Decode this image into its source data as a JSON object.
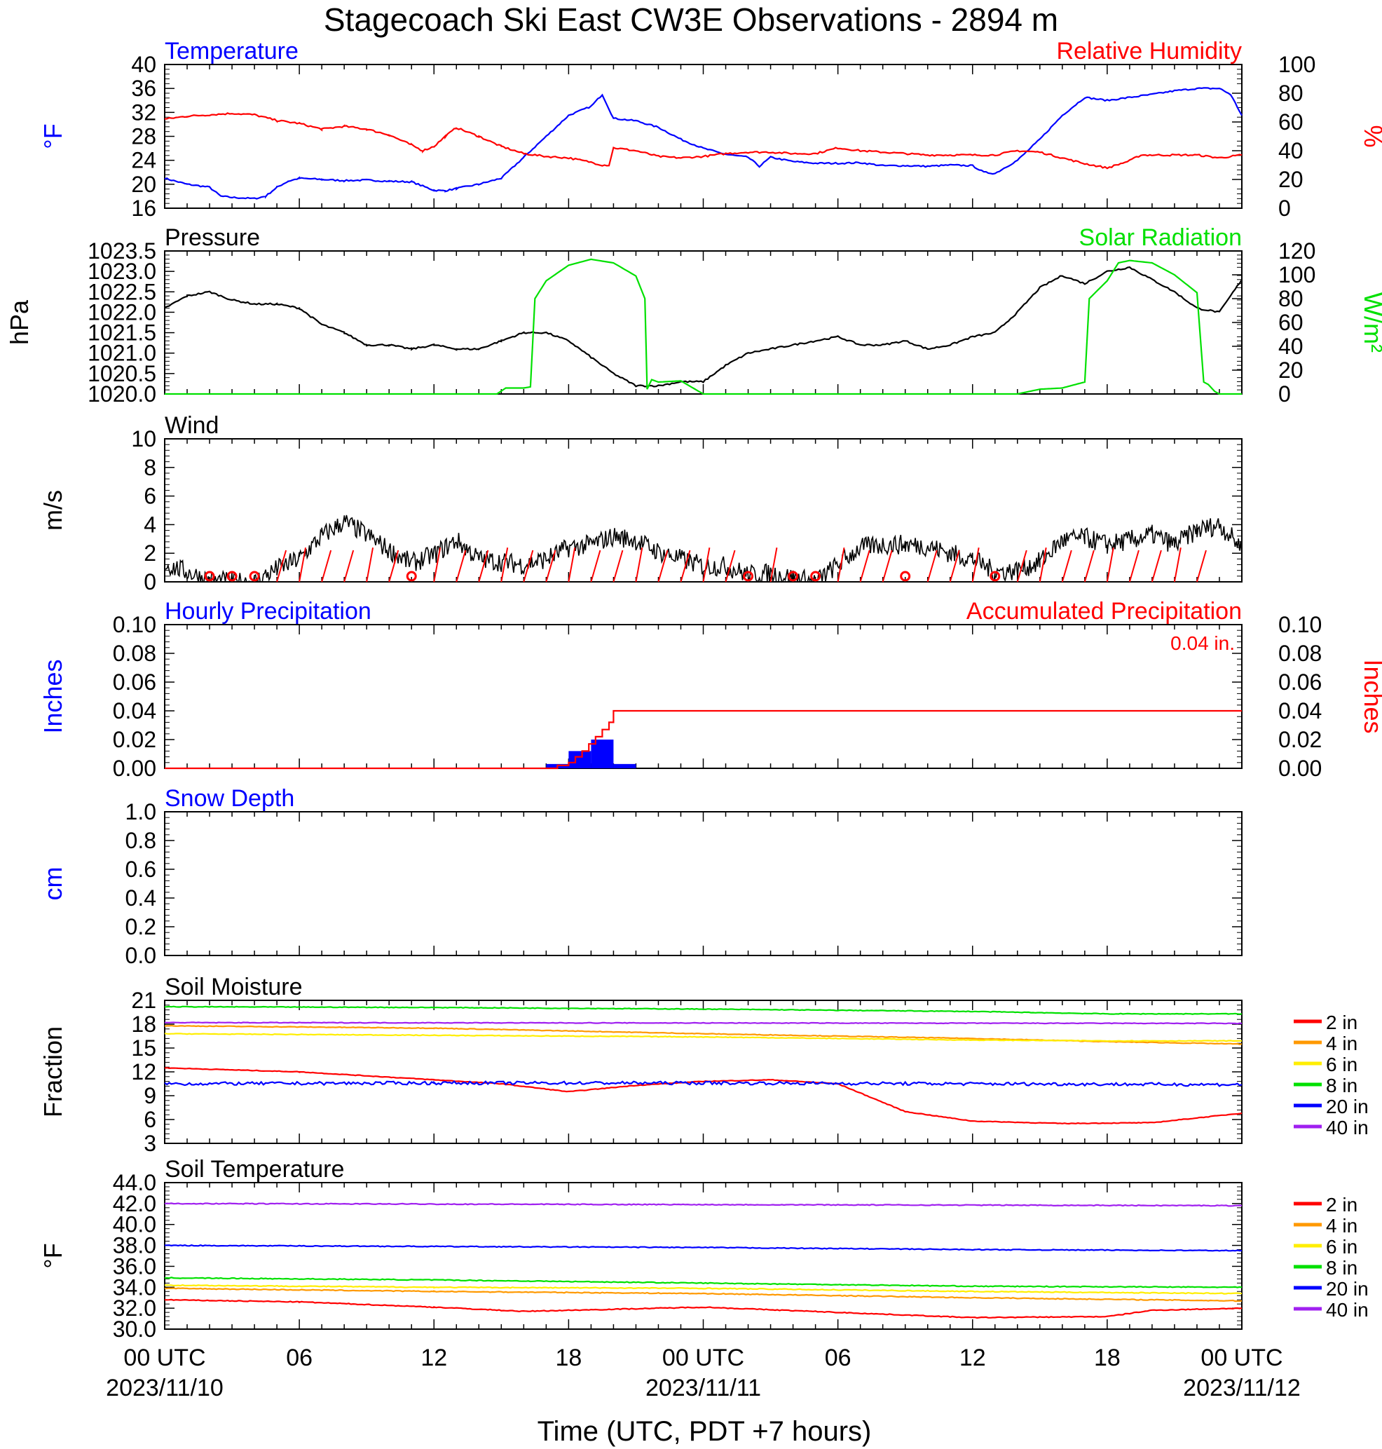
{
  "title": "Stagecoach Ski East CW3E Observations - 2894 m",
  "xaxis": {
    "title": "Time (UTC, PDT +7 hours)",
    "range_hours": [
      0,
      48
    ],
    "ticks": [
      {
        "h": 0,
        "label": "00 UTC",
        "date": "2023/11/10"
      },
      {
        "h": 6,
        "label": "06",
        "date": ""
      },
      {
        "h": 12,
        "label": "12",
        "date": ""
      },
      {
        "h": 18,
        "label": "18",
        "date": ""
      },
      {
        "h": 24,
        "label": "00 UTC",
        "date": "2023/11/11"
      },
      {
        "h": 30,
        "label": "06",
        "date": ""
      },
      {
        "h": 36,
        "label": "12",
        "date": ""
      },
      {
        "h": 42,
        "label": "18",
        "date": ""
      },
      {
        "h": 48,
        "label": "00 UTC",
        "date": "2023/11/12"
      }
    ]
  },
  "colors": {
    "blue": "#0000ff",
    "red": "#ff0000",
    "green": "#00e000",
    "black": "#000000",
    "orange": "#ff9900",
    "yellow": "#ffee00",
    "purple": "#a020f0"
  },
  "chart_data": [
    {
      "type": "line",
      "id": "temp",
      "title_left": "Temperature",
      "title_right": "Relative Humidity",
      "ylabel_left": "°F",
      "ylabel_right": "%",
      "ylim_left": [
        16,
        40
      ],
      "yticks_left": [
        "16",
        "20",
        "24",
        "28",
        "32",
        "36",
        "40"
      ],
      "ylim_right": [
        0,
        100
      ],
      "yticks_right": [
        "0",
        "20",
        "40",
        "60",
        "80",
        "100"
      ],
      "series": [
        {
          "name": "Temperature",
          "axis": "left",
          "color": "#0000ff",
          "x": [
            0,
            1,
            2,
            2.5,
            3,
            4,
            4.5,
            5,
            5.5,
            6,
            7,
            8,
            9,
            10,
            11,
            12,
            12.5,
            13,
            14,
            15,
            16,
            17,
            18,
            19,
            19.5,
            20,
            21,
            22,
            23,
            24,
            25,
            26,
            26.5,
            27,
            28,
            29,
            30,
            31,
            32,
            33,
            34,
            35,
            36,
            36.5,
            37,
            38,
            39,
            40,
            41,
            42,
            43,
            44,
            45,
            46,
            47,
            47.5,
            48
          ],
          "y": [
            21,
            20,
            19.5,
            18,
            17.8,
            17.6,
            18,
            19.5,
            20.5,
            21,
            20.8,
            20.6,
            20.7,
            20.5,
            20.4,
            19,
            18.9,
            19.3,
            20,
            21,
            24.5,
            28,
            31.5,
            33,
            35,
            31,
            30.6,
            29.5,
            27.5,
            26,
            25,
            24.5,
            23,
            24.5,
            23.8,
            23.5,
            23.5,
            23.6,
            23.1,
            23.1,
            23,
            23.2,
            23.1,
            22,
            21.8,
            24,
            27.5,
            31.5,
            34.5,
            34,
            34.5,
            35,
            35.6,
            36,
            36,
            35,
            31.5
          ]
        },
        {
          "name": "Relative Humidity",
          "axis": "right",
          "color": "#ff0000",
          "x": [
            0,
            1,
            2,
            3,
            4,
            5,
            6,
            7,
            8,
            9,
            10,
            11,
            11.5,
            12,
            12.5,
            13,
            14,
            15,
            16,
            17,
            18,
            19,
            19.5,
            19.8,
            20,
            21,
            22,
            23,
            24,
            25,
            26,
            27,
            28,
            29,
            30,
            31,
            32,
            33,
            34,
            35,
            36,
            37,
            38,
            39,
            40,
            41,
            42,
            43,
            43.5,
            44,
            45,
            46,
            47,
            47.5,
            48
          ],
          "y": [
            62,
            64,
            65,
            66,
            65,
            61,
            59,
            55,
            57,
            55,
            51,
            44,
            40,
            43,
            50,
            56,
            50,
            43,
            38,
            36,
            35,
            32,
            30,
            30,
            42,
            40,
            36,
            35,
            36,
            38,
            39,
            39,
            38,
            38,
            42,
            40,
            39,
            38,
            37,
            37,
            37,
            37,
            40,
            39,
            35,
            31,
            28,
            33,
            37,
            37,
            37,
            37,
            35,
            36,
            37
          ]
        }
      ]
    },
    {
      "type": "line",
      "id": "pressure",
      "title_left": "Pressure",
      "title_right": "Solar Radiation",
      "ylabel_left": "hPa",
      "ylabel_right": "W/m²",
      "ylim_left": [
        1020.0,
        1023.5
      ],
      "yticks_left": [
        "1020.0",
        "1020.5",
        "1021.0",
        "1021.5",
        "1022.0",
        "1022.5",
        "1023.0",
        "1023.5"
      ],
      "ylim_right": [
        0,
        120
      ],
      "yticks_right": [
        "0",
        "20",
        "40",
        "60",
        "80",
        "100",
        "120"
      ],
      "series": [
        {
          "name": "Pressure",
          "axis": "left",
          "color": "#000000",
          "x": [
            0,
            1,
            2,
            3,
            4,
            5,
            6,
            7,
            8,
            9,
            10,
            11,
            12,
            13,
            14,
            15,
            16,
            17,
            18,
            19,
            20,
            21,
            22,
            23,
            24,
            25,
            26,
            27,
            28,
            29,
            30,
            31,
            32,
            33,
            34,
            35,
            36,
            37,
            38,
            39,
            40,
            41,
            42,
            43,
            44,
            45,
            46,
            47,
            48
          ],
          "y": [
            1022.1,
            1022.4,
            1022.5,
            1022.3,
            1022.2,
            1022.2,
            1022.1,
            1021.7,
            1021.5,
            1021.2,
            1021.2,
            1021.1,
            1021.2,
            1021.1,
            1021.1,
            1021.3,
            1021.5,
            1021.5,
            1021.3,
            1020.9,
            1020.5,
            1020.2,
            1020.2,
            1020.3,
            1020.3,
            1020.7,
            1021.0,
            1021.1,
            1021.2,
            1021.3,
            1021.4,
            1021.2,
            1021.2,
            1021.3,
            1021.1,
            1021.2,
            1021.4,
            1021.5,
            1022.0,
            1022.6,
            1022.9,
            1022.7,
            1023.0,
            1023.1,
            1022.8,
            1022.5,
            1022.1,
            1022.0,
            1022.8
          ]
        },
        {
          "name": "Solar Radiation",
          "axis": "right",
          "color": "#00e000",
          "x": [
            0,
            14,
            14.8,
            15.2,
            16,
            16.3,
            16.5,
            17,
            18,
            19,
            20,
            21,
            21.4,
            21.5,
            21.7,
            22,
            23,
            24,
            36,
            38,
            39,
            40,
            41,
            41.2,
            42,
            42.5,
            43,
            44,
            45,
            46,
            46.3,
            46.5,
            46.8,
            47,
            48
          ],
          "y": [
            0,
            0,
            0,
            5,
            5,
            6,
            80,
            95,
            108,
            113,
            110,
            99,
            80,
            4,
            12,
            10,
            11,
            0,
            0,
            0,
            4,
            5,
            10,
            80,
            95,
            110,
            112,
            110,
            100,
            85,
            10,
            8,
            2,
            0,
            0
          ]
        }
      ]
    },
    {
      "type": "line",
      "id": "wind",
      "title_left": "Wind",
      "ylabel_left": "m/s",
      "ylim_left": [
        0,
        10
      ],
      "yticks_left": [
        "0",
        "2",
        "4",
        "6",
        "8",
        "10"
      ],
      "series": [
        {
          "name": "Wind",
          "axis": "left",
          "color": "#000000",
          "x": [
            0,
            1,
            2,
            3,
            4,
            5,
            6,
            7,
            8,
            9,
            10,
            11,
            12,
            13,
            14,
            15,
            16,
            17,
            18,
            19,
            20,
            21,
            22,
            23,
            24,
            25,
            26,
            27,
            28,
            29,
            30,
            31,
            32,
            33,
            34,
            35,
            36,
            37,
            38,
            39,
            40,
            41,
            42,
            43,
            44,
            45,
            46,
            47,
            48
          ],
          "y": [
            1.2,
            0.7,
            0.1,
            0,
            0,
            0.9,
            1.6,
            3.2,
            4.2,
            3.3,
            2.2,
            1.3,
            1.9,
            2.9,
            1.6,
            1.4,
            1.2,
            1.6,
            2.4,
            2.6,
            3.2,
            2.9,
            2.1,
            1.6,
            1.1,
            1.1,
            0.5,
            0.6,
            0.3,
            0,
            1.2,
            2.4,
            2.6,
            2.6,
            2.5,
            2.0,
            1.6,
            0.7,
            0.8,
            1.4,
            2.9,
            3.1,
            2.6,
            2.9,
            3.3,
            2.6,
            3.6,
            4.0,
            2.4
          ]
        }
      ],
      "calm_markers_hours": [
        2,
        3,
        4,
        11,
        26,
        28,
        29,
        33,
        37
      ]
    },
    {
      "type": "bar",
      "id": "precip",
      "title_left": "Hourly Precipitation",
      "title_right": "Accumulated Precipitation",
      "annotation": "0.04 in.",
      "ylabel_left": "Inches",
      "ylabel_right": "Inches",
      "ylim_left": [
        0,
        0.1
      ],
      "yticks_left": [
        "0.00",
        "0.02",
        "0.04",
        "0.06",
        "0.08",
        "0.10"
      ],
      "ylim_right": [
        0,
        0.1
      ],
      "yticks_right": [
        "0.00",
        "0.02",
        "0.04",
        "0.06",
        "0.08",
        "0.10"
      ],
      "hourly": {
        "x": [
          17,
          18,
          19,
          20
        ],
        "values": [
          0.003,
          0.012,
          0.02,
          0.003
        ],
        "color": "#0000ff"
      },
      "series": [
        {
          "name": "Accumulated Precipitation",
          "axis": "right",
          "color": "#ff0000",
          "step": true,
          "x": [
            0,
            17,
            17.5,
            18,
            18.3,
            18.6,
            18.9,
            19.2,
            19.5,
            19.8,
            20,
            48
          ],
          "y": [
            0,
            0,
            0.002,
            0.004,
            0.008,
            0.012,
            0.017,
            0.022,
            0.027,
            0.032,
            0.04,
            0.04
          ]
        }
      ]
    },
    {
      "type": "line",
      "id": "snow",
      "title_left": "Snow Depth",
      "ylabel_left": "cm",
      "ylim_left": [
        0,
        1
      ],
      "yticks_left": [
        "0.0",
        "0.2",
        "0.4",
        "0.6",
        "0.8",
        "1.0"
      ],
      "series": []
    },
    {
      "type": "line",
      "id": "soilm",
      "title_left": "Soil Moisture",
      "ylabel_left": "Fraction",
      "ylim_left": [
        3,
        21
      ],
      "yticks_left": [
        "3",
        "6",
        "9",
        "12",
        "15",
        "18",
        "21"
      ],
      "legend": [
        "2 in",
        "4 in",
        "6 in",
        "8 in",
        "20 in",
        "40 in"
      ],
      "series": [
        {
          "name": "2 in",
          "color": "#ff0000",
          "x": [
            0,
            6,
            12,
            15,
            18,
            21,
            24,
            27,
            30,
            33,
            36,
            40,
            44,
            48
          ],
          "y": [
            12.5,
            12.0,
            11.0,
            10.5,
            9.5,
            10.3,
            10.8,
            11.0,
            10.5,
            7.0,
            5.8,
            5.5,
            5.6,
            6.8
          ]
        },
        {
          "name": "4 in",
          "color": "#ff9900",
          "x": [
            0,
            12,
            24,
            36,
            42,
            48
          ],
          "y": [
            17.8,
            17.5,
            16.8,
            16.2,
            15.8,
            15.5
          ]
        },
        {
          "name": "6 in",
          "color": "#ffee00",
          "x": [
            0,
            12,
            24,
            36,
            42,
            48
          ],
          "y": [
            16.8,
            16.6,
            16.4,
            16.0,
            15.9,
            15.9
          ]
        },
        {
          "name": "8 in",
          "color": "#00e000",
          "x": [
            0,
            12,
            24,
            36,
            42,
            48
          ],
          "y": [
            20.2,
            20.1,
            19.9,
            19.6,
            19.3,
            19.3
          ]
        },
        {
          "name": "20 in",
          "color": "#0000ff",
          "x": [
            0,
            12,
            24,
            36,
            48
          ],
          "y": [
            10.5,
            10.6,
            10.6,
            10.5,
            10.4
          ]
        },
        {
          "name": "40 in",
          "color": "#a020f0",
          "x": [
            0,
            48
          ],
          "y": [
            18.2,
            18.1
          ]
        }
      ]
    },
    {
      "type": "line",
      "id": "soilt",
      "title_left": "Soil Temperature",
      "ylabel_left": "°F",
      "ylim_left": [
        30,
        44
      ],
      "yticks_left": [
        "30.0",
        "32.0",
        "34.0",
        "36.0",
        "38.0",
        "40.0",
        "42.0",
        "44.0"
      ],
      "legend": [
        "2 in",
        "4 in",
        "6 in",
        "8 in",
        "20 in",
        "40 in"
      ],
      "series": [
        {
          "name": "2 in",
          "color": "#ff0000",
          "x": [
            0,
            6,
            12,
            16,
            20,
            24,
            30,
            36,
            42,
            44,
            48
          ],
          "y": [
            32.8,
            32.6,
            32.1,
            31.7,
            31.9,
            32.1,
            31.6,
            31.1,
            31.2,
            31.8,
            32.0
          ]
        },
        {
          "name": "4 in",
          "color": "#ff9900",
          "x": [
            0,
            12,
            24,
            36,
            48
          ],
          "y": [
            33.9,
            33.6,
            33.4,
            33.0,
            32.7
          ]
        },
        {
          "name": "6 in",
          "color": "#ffee00",
          "x": [
            0,
            12,
            24,
            36,
            48
          ],
          "y": [
            34.2,
            34.0,
            33.9,
            33.6,
            33.4
          ]
        },
        {
          "name": "8 in",
          "color": "#00e000",
          "x": [
            0,
            12,
            24,
            36,
            48
          ],
          "y": [
            34.9,
            34.7,
            34.4,
            34.1,
            34.0
          ]
        },
        {
          "name": "20 in",
          "color": "#0000ff",
          "x": [
            0,
            12,
            24,
            36,
            48
          ],
          "y": [
            38.0,
            37.9,
            37.8,
            37.6,
            37.5
          ]
        },
        {
          "name": "40 in",
          "color": "#a020f0",
          "x": [
            0,
            24,
            48
          ],
          "y": [
            42.0,
            41.9,
            41.8
          ]
        }
      ]
    }
  ]
}
